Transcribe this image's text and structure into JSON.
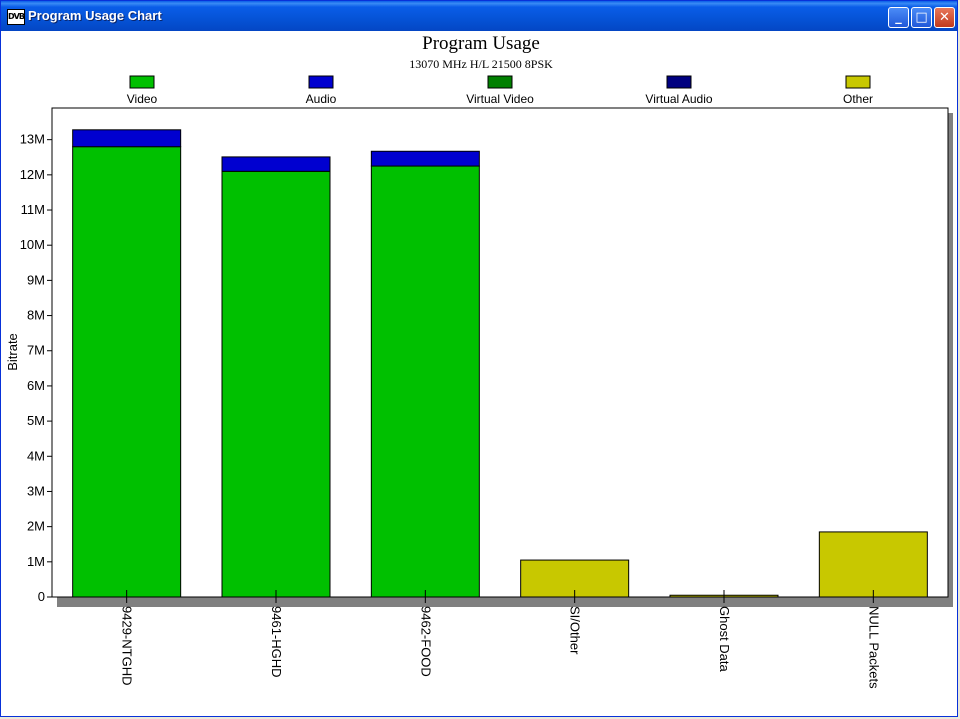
{
  "window": {
    "title": "Program Usage Chart",
    "app_icon_label": "DVB",
    "minimize_glyph": "_",
    "maximize_glyph": "□",
    "close_glyph": "✕"
  },
  "chart_data": {
    "type": "bar",
    "stacked": true,
    "title": "Program Usage",
    "subtitle": "13070 MHz H/L 21500 8PSK",
    "ylabel": "Bitrate",
    "xlabel": "",
    "ylim": [
      0,
      13900000
    ],
    "yticks": [
      0,
      1000000,
      2000000,
      3000000,
      4000000,
      5000000,
      6000000,
      7000000,
      8000000,
      9000000,
      10000000,
      11000000,
      12000000,
      13000000
    ],
    "ytick_labels": [
      "0",
      "1M",
      "2M",
      "3M",
      "4M",
      "5M",
      "6M",
      "7M",
      "8M",
      "9M",
      "10M",
      "11M",
      "12M",
      "13M"
    ],
    "grid": false,
    "legend_position": "top",
    "categories": [
      "9429-NTGHD",
      "9461-HGHD",
      "9462-FOOD",
      "SI/Other",
      "Ghost Data",
      "NULL Packets"
    ],
    "series": [
      {
        "name": "Video",
        "color": "#00c000",
        "values": [
          12800000,
          12100000,
          12250000,
          0,
          0,
          0
        ]
      },
      {
        "name": "Audio",
        "color": "#0000d0",
        "values": [
          480000,
          410000,
          420000,
          0,
          0,
          0
        ]
      },
      {
        "name": "Virtual Video",
        "color": "#008000",
        "values": [
          0,
          0,
          0,
          0,
          0,
          0
        ]
      },
      {
        "name": "Virtual Audio",
        "color": "#000080",
        "values": [
          0,
          0,
          0,
          0,
          0,
          0
        ]
      },
      {
        "name": "Other",
        "color": "#c8c800",
        "values": [
          0,
          0,
          0,
          1050000,
          50000,
          1850000
        ]
      }
    ]
  }
}
